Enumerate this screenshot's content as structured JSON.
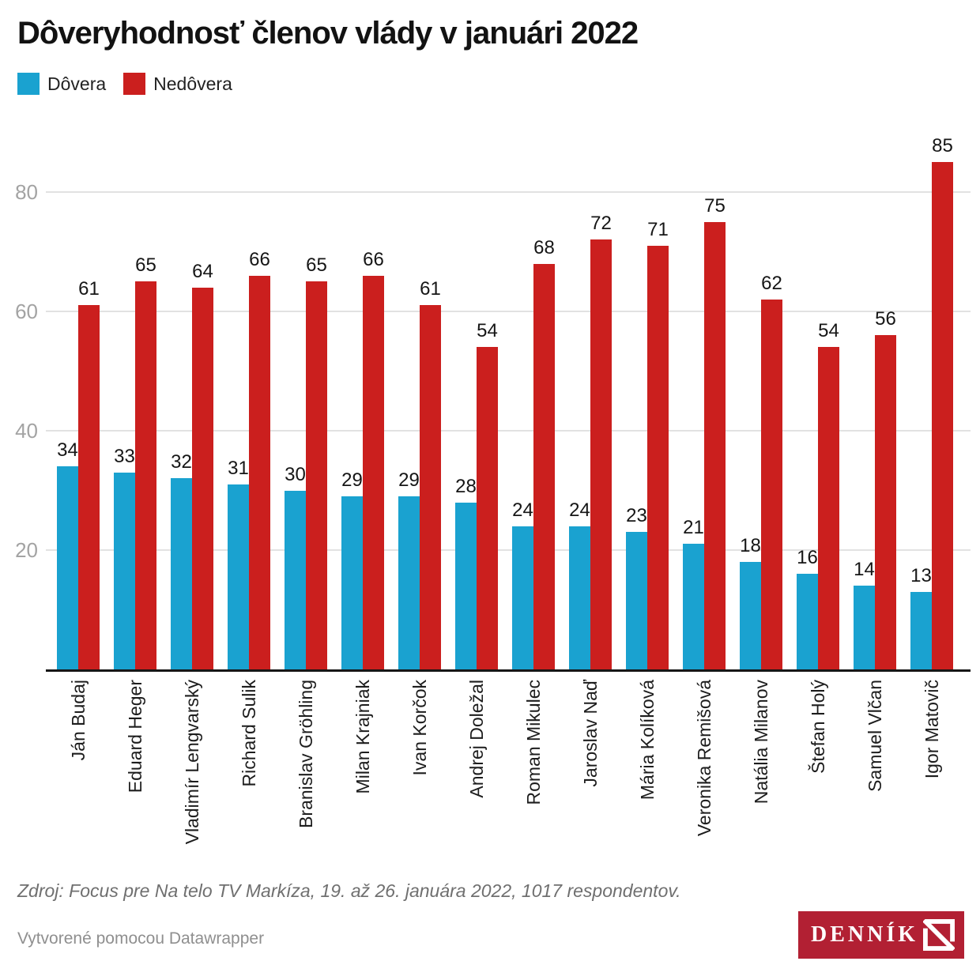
{
  "title": "Dôveryhodnosť členov vlády v januári 2022",
  "legend": [
    {
      "label": "Dôvera",
      "color": "#1aa2d0"
    },
    {
      "label": "Nedôvera",
      "color": "#cb1f1e"
    }
  ],
  "chart_data": {
    "type": "bar",
    "title": "Dôveryhodnosť členov vlády v januári 2022",
    "categories": [
      "Ján Budaj",
      "Eduard Heger",
      "Vladimír Lengvarský",
      "Richard Sulik",
      "Branislav Gröhling",
      "Milan Krajniak",
      "Ivan Korčok",
      "Andrej Doležal",
      "Roman Mikulec",
      "Jaroslav Naď",
      "Mária Kolíková",
      "Veronika Remišová",
      "Natália Milanov",
      "Štefan Holý",
      "Samuel Vlčan",
      "Igor Matovič"
    ],
    "series": [
      {
        "name": "Dôvera",
        "color": "#1aa2d0",
        "values": [
          34,
          33,
          32,
          31,
          30,
          29,
          29,
          28,
          24,
          24,
          23,
          21,
          18,
          16,
          14,
          13
        ]
      },
      {
        "name": "Nedôvera",
        "color": "#cb1f1e",
        "values": [
          61,
          65,
          64,
          66,
          65,
          66,
          61,
          54,
          68,
          72,
          71,
          75,
          62,
          54,
          56,
          85
        ]
      }
    ],
    "xlabel": "",
    "ylabel": "",
    "y_ticks": [
      20,
      40,
      60,
      80
    ],
    "ylim": [
      0,
      91
    ],
    "grid": "horizontal",
    "legend_position": "top-left",
    "value_labels": true,
    "colors": {
      "gridline": "#e2e2e2",
      "axis": "#161616",
      "tick_text": "#a3a3a3"
    }
  },
  "footer": {
    "source": "Zdroj: Focus pre Na telo TV Markíza, 19. až 26. januára 2022, 1017 respondentov.",
    "credit": "Vytvorené pomocou Datawrapper",
    "logo_text": "DENNÍK",
    "logo_color": "#b22033"
  }
}
